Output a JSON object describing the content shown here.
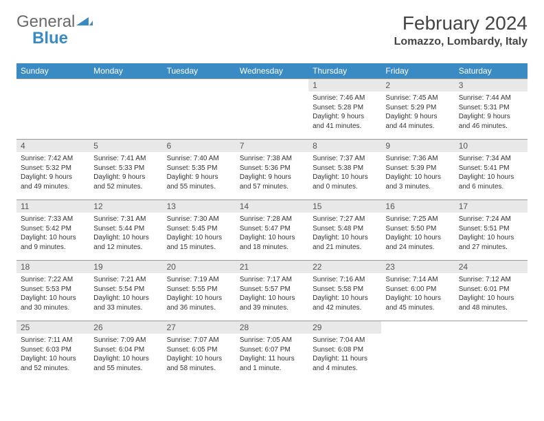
{
  "logo": {
    "text_a": "General",
    "text_b": "Blue"
  },
  "title": "February 2024",
  "location": "Lomazzo, Lombardy, Italy",
  "brand_blue": "#3a8bc4",
  "weekdays": [
    "Sunday",
    "Monday",
    "Tuesday",
    "Wednesday",
    "Thursday",
    "Friday",
    "Saturday"
  ],
  "weeks": [
    [
      null,
      null,
      null,
      null,
      {
        "n": "1",
        "sr": "7:46 AM",
        "ss": "5:28 PM",
        "dl": "9 hours and 41 minutes."
      },
      {
        "n": "2",
        "sr": "7:45 AM",
        "ss": "5:29 PM",
        "dl": "9 hours and 44 minutes."
      },
      {
        "n": "3",
        "sr": "7:44 AM",
        "ss": "5:31 PM",
        "dl": "9 hours and 46 minutes."
      }
    ],
    [
      {
        "n": "4",
        "sr": "7:42 AM",
        "ss": "5:32 PM",
        "dl": "9 hours and 49 minutes."
      },
      {
        "n": "5",
        "sr": "7:41 AM",
        "ss": "5:33 PM",
        "dl": "9 hours and 52 minutes."
      },
      {
        "n": "6",
        "sr": "7:40 AM",
        "ss": "5:35 PM",
        "dl": "9 hours and 55 minutes."
      },
      {
        "n": "7",
        "sr": "7:38 AM",
        "ss": "5:36 PM",
        "dl": "9 hours and 57 minutes."
      },
      {
        "n": "8",
        "sr": "7:37 AM",
        "ss": "5:38 PM",
        "dl": "10 hours and 0 minutes."
      },
      {
        "n": "9",
        "sr": "7:36 AM",
        "ss": "5:39 PM",
        "dl": "10 hours and 3 minutes."
      },
      {
        "n": "10",
        "sr": "7:34 AM",
        "ss": "5:41 PM",
        "dl": "10 hours and 6 minutes."
      }
    ],
    [
      {
        "n": "11",
        "sr": "7:33 AM",
        "ss": "5:42 PM",
        "dl": "10 hours and 9 minutes."
      },
      {
        "n": "12",
        "sr": "7:31 AM",
        "ss": "5:44 PM",
        "dl": "10 hours and 12 minutes."
      },
      {
        "n": "13",
        "sr": "7:30 AM",
        "ss": "5:45 PM",
        "dl": "10 hours and 15 minutes."
      },
      {
        "n": "14",
        "sr": "7:28 AM",
        "ss": "5:47 PM",
        "dl": "10 hours and 18 minutes."
      },
      {
        "n": "15",
        "sr": "7:27 AM",
        "ss": "5:48 PM",
        "dl": "10 hours and 21 minutes."
      },
      {
        "n": "16",
        "sr": "7:25 AM",
        "ss": "5:50 PM",
        "dl": "10 hours and 24 minutes."
      },
      {
        "n": "17",
        "sr": "7:24 AM",
        "ss": "5:51 PM",
        "dl": "10 hours and 27 minutes."
      }
    ],
    [
      {
        "n": "18",
        "sr": "7:22 AM",
        "ss": "5:53 PM",
        "dl": "10 hours and 30 minutes."
      },
      {
        "n": "19",
        "sr": "7:21 AM",
        "ss": "5:54 PM",
        "dl": "10 hours and 33 minutes."
      },
      {
        "n": "20",
        "sr": "7:19 AM",
        "ss": "5:55 PM",
        "dl": "10 hours and 36 minutes."
      },
      {
        "n": "21",
        "sr": "7:17 AM",
        "ss": "5:57 PM",
        "dl": "10 hours and 39 minutes."
      },
      {
        "n": "22",
        "sr": "7:16 AM",
        "ss": "5:58 PM",
        "dl": "10 hours and 42 minutes."
      },
      {
        "n": "23",
        "sr": "7:14 AM",
        "ss": "6:00 PM",
        "dl": "10 hours and 45 minutes."
      },
      {
        "n": "24",
        "sr": "7:12 AM",
        "ss": "6:01 PM",
        "dl": "10 hours and 48 minutes."
      }
    ],
    [
      {
        "n": "25",
        "sr": "7:11 AM",
        "ss": "6:03 PM",
        "dl": "10 hours and 52 minutes."
      },
      {
        "n": "26",
        "sr": "7:09 AM",
        "ss": "6:04 PM",
        "dl": "10 hours and 55 minutes."
      },
      {
        "n": "27",
        "sr": "7:07 AM",
        "ss": "6:05 PM",
        "dl": "10 hours and 58 minutes."
      },
      {
        "n": "28",
        "sr": "7:05 AM",
        "ss": "6:07 PM",
        "dl": "11 hours and 1 minute."
      },
      {
        "n": "29",
        "sr": "7:04 AM",
        "ss": "6:08 PM",
        "dl": "11 hours and 4 minutes."
      },
      null,
      null
    ]
  ],
  "labels": {
    "sunrise": "Sunrise:",
    "sunset": "Sunset:",
    "daylight": "Daylight:"
  }
}
